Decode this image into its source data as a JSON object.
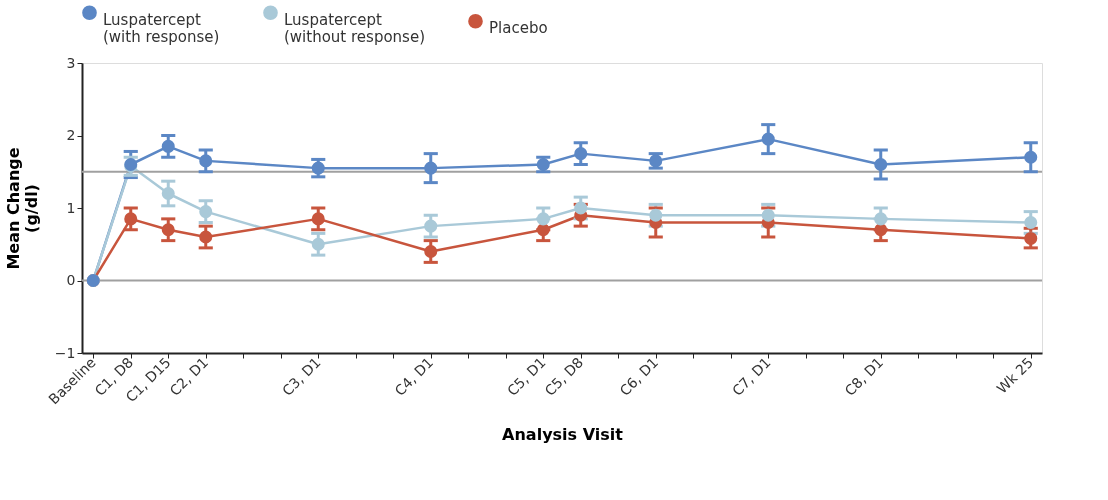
{
  "chart_data": {
    "type": "line",
    "xlabel": "Analysis Visit",
    "ylabel": "Mean Change (g/dl)",
    "categories": [
      "Baseline",
      "C1, D8",
      "C1, D15",
      "C2, D1",
      null,
      null,
      "C3, D1",
      null,
      null,
      "C4, D1",
      null,
      null,
      "C5, D1",
      "C5, D8",
      null,
      "C6, D1",
      null,
      null,
      "C7, D1",
      null,
      null,
      "C8, D1",
      null,
      null,
      null,
      "Wk 25"
    ],
    "ylim": [
      -1,
      3
    ],
    "yticks": [
      {
        "value": -1,
        "label": "−1"
      },
      0,
      1,
      2,
      3
    ],
    "grid": false,
    "legend": "top",
    "marker": "circle",
    "line_style": "solid",
    "ref_lines": [
      {
        "axis": "y",
        "value": 1.5,
        "color": "#a0a0a0"
      },
      {
        "axis": "y",
        "value": 0,
        "color": "#a0a0a0"
      }
    ],
    "series": [
      {
        "name": "Luspatercept (with response)",
        "color": "#5b87c5",
        "values": [
          0,
          1.6,
          1.85,
          1.65,
          null,
          null,
          1.55,
          null,
          null,
          1.55,
          null,
          null,
          1.6,
          1.75,
          null,
          1.65,
          null,
          null,
          1.95,
          null,
          null,
          1.6,
          null,
          null,
          null,
          1.7
        ],
        "errors": [
          null,
          [
            1.42,
            1.78
          ],
          [
            1.7,
            2.0
          ],
          [
            1.5,
            1.8
          ],
          null,
          null,
          [
            1.43,
            1.67
          ],
          null,
          null,
          [
            1.35,
            1.75
          ],
          null,
          null,
          [
            1.5,
            1.7
          ],
          [
            1.6,
            1.9
          ],
          null,
          [
            1.55,
            1.75
          ],
          null,
          null,
          [
            1.75,
            2.15
          ],
          null,
          null,
          [
            1.4,
            1.8
          ],
          null,
          null,
          null,
          [
            1.5,
            1.9
          ]
        ]
      },
      {
        "name": "Luspatercept (without response)",
        "color": "#a9c9d8",
        "values": [
          0,
          1.58,
          1.2,
          0.95,
          null,
          null,
          0.5,
          null,
          null,
          0.75,
          null,
          null,
          0.85,
          1.0,
          null,
          0.9,
          null,
          null,
          0.9,
          null,
          null,
          0.85,
          null,
          null,
          null,
          0.8
        ],
        "errors": [
          null,
          [
            1.45,
            1.7
          ],
          [
            1.03,
            1.37
          ],
          [
            0.8,
            1.1
          ],
          null,
          null,
          [
            0.35,
            0.65
          ],
          null,
          null,
          [
            0.6,
            0.9
          ],
          null,
          null,
          [
            0.85,
            1.0
          ],
          [
            0.85,
            1.15
          ],
          null,
          [
            0.75,
            1.05
          ],
          null,
          null,
          [
            0.75,
            1.05
          ],
          null,
          null,
          [
            0.85,
            1.0
          ],
          null,
          null,
          null,
          [
            0.65,
            0.95
          ]
        ]
      },
      {
        "name": "Placebo",
        "color": "#c8553d",
        "values": [
          0,
          0.85,
          0.7,
          0.6,
          null,
          null,
          0.85,
          null,
          null,
          0.4,
          null,
          null,
          0.7,
          0.9,
          null,
          0.8,
          null,
          null,
          0.8,
          null,
          null,
          0.7,
          null,
          null,
          null,
          0.58
        ],
        "errors": [
          null,
          [
            0.7,
            1.0
          ],
          [
            0.55,
            0.85
          ],
          [
            0.45,
            0.75
          ],
          null,
          null,
          [
            0.7,
            1.0
          ],
          null,
          null,
          [
            0.25,
            0.55
          ],
          null,
          null,
          [
            0.55,
            0.7
          ],
          [
            0.75,
            1.05
          ],
          null,
          [
            0.6,
            1.0
          ],
          null,
          null,
          [
            0.6,
            1.0
          ],
          null,
          null,
          [
            0.55,
            0.7
          ],
          null,
          null,
          null,
          [
            0.45,
            0.72
          ]
        ]
      }
    ]
  }
}
